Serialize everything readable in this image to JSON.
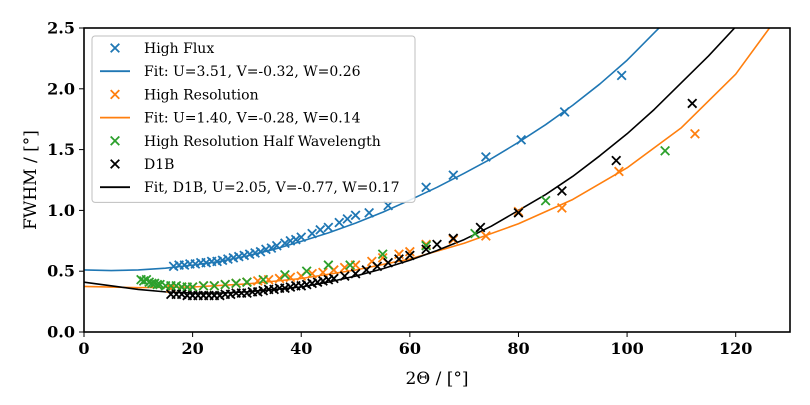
{
  "chart_data": {
    "type": "scatter",
    "xlabel": "2Θ / [°]",
    "ylabel": "FWHM / [°]",
    "xlim": [
      0,
      130
    ],
    "ylim": [
      0,
      2.5
    ],
    "xticks": [
      "0",
      "20",
      "40",
      "60",
      "80",
      "100",
      "120"
    ],
    "yticks": [
      "0.0",
      "0.5",
      "1.0",
      "1.5",
      "2.0",
      "2.5"
    ],
    "grid": false,
    "legend_position": "top-left",
    "colors": {
      "high_flux": "#1f77b4",
      "high_resolution": "#ff7f0e",
      "half_wavelength": "#2ca02c",
      "d1b": "#000000"
    },
    "series": [
      {
        "name": "High Flux",
        "kind": "scatter",
        "color": "#1f77b4",
        "x": [
          16.5,
          17.5,
          18.5,
          19.5,
          20.5,
          21.5,
          22.5,
          23.5,
          24.5,
          25.5,
          26.5,
          27.5,
          28.5,
          29.5,
          30.5,
          31.5,
          32.5,
          33.5,
          34.5,
          35.5,
          37,
          38,
          39,
          40,
          42,
          43.5,
          45,
          47,
          48.5,
          50,
          52.5,
          56,
          63,
          68,
          74,
          80.5,
          88.5,
          99
        ],
        "y": [
          0.54,
          0.55,
          0.55,
          0.56,
          0.56,
          0.57,
          0.57,
          0.58,
          0.58,
          0.59,
          0.6,
          0.61,
          0.62,
          0.63,
          0.64,
          0.65,
          0.66,
          0.68,
          0.69,
          0.71,
          0.73,
          0.75,
          0.76,
          0.78,
          0.81,
          0.84,
          0.86,
          0.9,
          0.93,
          0.96,
          0.98,
          1.04,
          1.19,
          1.29,
          1.44,
          1.58,
          1.81,
          2.11
        ]
      },
      {
        "name": "Fit: U=3.51, V=-0.32, W=0.26",
        "kind": "line",
        "color": "#1f77b4",
        "x": [
          0,
          5,
          10,
          15,
          20,
          25,
          30,
          35,
          40,
          45,
          50,
          55,
          60,
          65,
          70,
          75,
          80,
          85,
          90,
          95,
          100,
          105,
          107
        ],
        "y": [
          0.51,
          0.505,
          0.51,
          0.525,
          0.55,
          0.58,
          0.625,
          0.68,
          0.745,
          0.815,
          0.895,
          0.985,
          1.085,
          1.19,
          1.305,
          1.425,
          1.56,
          1.705,
          1.865,
          2.04,
          2.235,
          2.46,
          2.55
        ]
      },
      {
        "name": "High Resolution",
        "kind": "scatter",
        "color": "#ff7f0e",
        "x": [
          16,
          18,
          20,
          22,
          24,
          26,
          28,
          30,
          32,
          34,
          36,
          38,
          40,
          42,
          44,
          46,
          48,
          50,
          53,
          55,
          58,
          60,
          63,
          68,
          74,
          80,
          88,
          98.5,
          112.5
        ],
        "y": [
          0.36,
          0.37,
          0.37,
          0.38,
          0.38,
          0.39,
          0.4,
          0.41,
          0.42,
          0.43,
          0.44,
          0.45,
          0.46,
          0.48,
          0.49,
          0.51,
          0.53,
          0.55,
          0.58,
          0.61,
          0.64,
          0.66,
          0.72,
          0.76,
          0.79,
          0.99,
          1.02,
          1.32,
          1.63
        ]
      },
      {
        "name": "Fit: U=1.40, V=-0.28, W=0.14",
        "kind": "line",
        "color": "#ff7f0e",
        "x": [
          0,
          10,
          20,
          30,
          40,
          50,
          60,
          70,
          80,
          90,
          100,
          110,
          120,
          130
        ],
        "y": [
          0.375,
          0.365,
          0.37,
          0.395,
          0.44,
          0.51,
          0.6,
          0.73,
          0.89,
          1.09,
          1.35,
          1.68,
          2.12,
          2.73
        ]
      },
      {
        "name": "High Resolution Half Wavelength",
        "kind": "scatter",
        "color": "#2ca02c",
        "x": [
          10.5,
          11,
          11.5,
          12,
          12.5,
          13,
          13.5,
          14,
          15,
          16,
          17,
          18,
          19,
          20,
          22,
          24,
          26,
          28,
          30,
          33,
          37,
          41,
          45,
          49,
          55,
          63,
          72,
          85,
          107
        ],
        "y": [
          0.43,
          0.42,
          0.43,
          0.41,
          0.4,
          0.4,
          0.39,
          0.39,
          0.38,
          0.38,
          0.38,
          0.37,
          0.37,
          0.37,
          0.38,
          0.38,
          0.39,
          0.4,
          0.41,
          0.43,
          0.47,
          0.5,
          0.55,
          0.55,
          0.64,
          0.71,
          0.81,
          1.08,
          1.49
        ]
      },
      {
        "name": "D1B",
        "kind": "scatter",
        "color": "#000000",
        "x": [
          16,
          17,
          18,
          19,
          20,
          21,
          22,
          23,
          24,
          25,
          26,
          27,
          28,
          29,
          30,
          31,
          32,
          33,
          34,
          35,
          36,
          37,
          38,
          39,
          40,
          41,
          42,
          43,
          44,
          45,
          46,
          48,
          50,
          52,
          54,
          56,
          58,
          60,
          63,
          65,
          68,
          73,
          80,
          88,
          98,
          112
        ],
        "y": [
          0.31,
          0.31,
          0.31,
          0.3,
          0.3,
          0.3,
          0.3,
          0.3,
          0.3,
          0.3,
          0.31,
          0.31,
          0.32,
          0.32,
          0.32,
          0.33,
          0.33,
          0.34,
          0.35,
          0.35,
          0.36,
          0.36,
          0.37,
          0.38,
          0.38,
          0.39,
          0.4,
          0.41,
          0.42,
          0.43,
          0.44,
          0.46,
          0.48,
          0.51,
          0.54,
          0.57,
          0.6,
          0.63,
          0.68,
          0.72,
          0.77,
          0.86,
          0.98,
          1.16,
          1.41,
          1.88
        ]
      },
      {
        "name": "Fit, D1B, U=2.05, V=-0.77, W=0.17",
        "kind": "line",
        "color": "#000000",
        "x": [
          0,
          5,
          10,
          15,
          20,
          25,
          30,
          35,
          40,
          45,
          50,
          55,
          60,
          65,
          70,
          75,
          80,
          85,
          90,
          95,
          100,
          105,
          110,
          115,
          120,
          125
        ],
        "y": [
          0.41,
          0.38,
          0.35,
          0.33,
          0.32,
          0.32,
          0.33,
          0.35,
          0.37,
          0.41,
          0.46,
          0.52,
          0.59,
          0.67,
          0.76,
          0.87,
          1.0,
          1.13,
          1.28,
          1.45,
          1.63,
          1.83,
          2.05,
          2.27,
          2.51,
          2.77
        ]
      }
    ]
  }
}
